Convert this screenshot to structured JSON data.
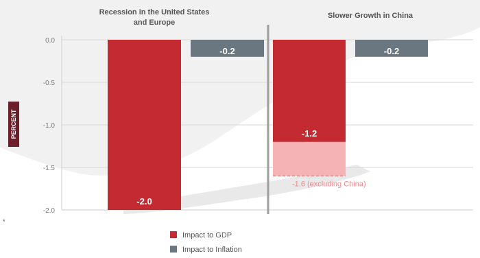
{
  "chart_data": {
    "type": "bar",
    "ylabel": "PERCENT",
    "ylim": [
      -2.0,
      0.0
    ],
    "yticks": [
      "0.0",
      "-0.5",
      "-1.0",
      "-1.5",
      "-2.0"
    ],
    "grid": true,
    "legend_position": "bottom-center",
    "panels": [
      {
        "title_lines": [
          "Recession in the United States",
          "and Europe"
        ],
        "series": [
          {
            "name": "Impact to GDP",
            "value": -2.0,
            "label": "-2.0"
          },
          {
            "name": "Impact to Inflation",
            "value": -0.2,
            "label": "-0.2"
          }
        ]
      },
      {
        "title_lines": [
          "Slower Growth in China"
        ],
        "series": [
          {
            "name": "Impact to GDP",
            "value": -1.2,
            "label": "-1.2"
          },
          {
            "name": "Impact to Inflation",
            "value": -0.2,
            "label": "-0.2"
          }
        ],
        "extension": {
          "value": -1.6,
          "label": "-1.6 (excluding China)"
        }
      }
    ],
    "legend": [
      "Impact to GDP",
      "Impact to Inflation"
    ],
    "footnote_mark": "*",
    "colors": {
      "gdp": "#c42a32",
      "inflation": "#6b7780",
      "extension": "#f5b3b6",
      "axis": "#bdbdbd",
      "divider": "#9e9e9e",
      "ylabel_box": "#6b1f2a"
    }
  }
}
